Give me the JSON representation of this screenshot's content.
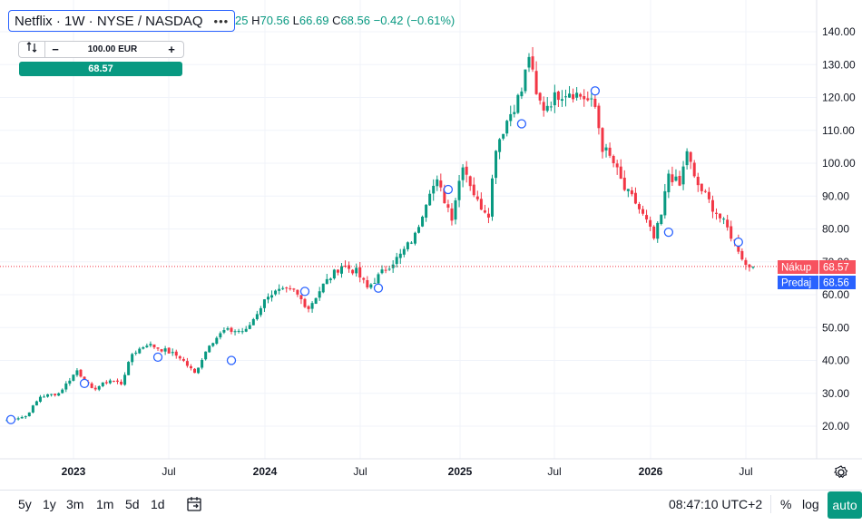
{
  "header": {
    "symbol": "Netflix · 1W · NYSE / NASDAQ",
    "menu_glyph": "•••",
    "ohlc_open_partial": "25",
    "high_label": "H",
    "high": "70.56",
    "low_label": "L",
    "low": "66.69",
    "close_label": "C",
    "close": "68.56",
    "change": "−0.42 (−0.61%)"
  },
  "trade": {
    "icon": "swap-icon",
    "amount": "100.00 EUR",
    "minus": "−",
    "plus": "+",
    "price": "68.57"
  },
  "bottom": {
    "ranges": [
      "5y",
      "1y",
      "3m",
      "1m",
      "5d",
      "1d"
    ],
    "time": "08:47:10 UTC+2",
    "percent": "%",
    "log": "log",
    "auto": "auto"
  },
  "colors": {
    "up": "#089981",
    "down": "#f23645",
    "buy_label": "#f7525f",
    "sell_label": "#2962ff",
    "grid": "#f0f3fa"
  },
  "chart_data": {
    "type": "candlestick",
    "interval": "1W",
    "y_axis": {
      "min": 10,
      "max": 145,
      "ticks": [
        20,
        30,
        40,
        50,
        60,
        70,
        80,
        90,
        100,
        110,
        120,
        130,
        140
      ],
      "tick_labels": [
        "20.00",
        "30.00",
        "40.00",
        "50.00",
        "60.00",
        "70.00",
        "80.00",
        "90.00",
        "100.00",
        "110.00",
        "120.00",
        "130.00",
        "140.00"
      ]
    },
    "x_axis": {
      "labels": [
        "2023",
        "Jul",
        "2024",
        "Jul",
        "2025",
        "Jul",
        "2026",
        "Jul"
      ],
      "bold": [
        true,
        false,
        true,
        false,
        true,
        false,
        true,
        false
      ]
    },
    "anchors": [
      [
        0,
        22
      ],
      [
        5,
        23
      ],
      [
        9,
        29
      ],
      [
        14,
        30
      ],
      [
        19,
        37
      ],
      [
        23,
        31
      ],
      [
        28,
        34
      ],
      [
        31,
        33
      ],
      [
        34,
        42
      ],
      [
        38,
        45
      ],
      [
        43,
        43
      ],
      [
        47,
        41
      ],
      [
        51,
        36
      ],
      [
        55,
        45
      ],
      [
        59,
        49
      ],
      [
        65,
        49
      ],
      [
        71,
        60
      ],
      [
        74,
        61
      ],
      [
        78,
        61
      ],
      [
        82,
        56
      ],
      [
        86,
        63
      ],
      [
        91,
        69
      ],
      [
        95,
        67
      ],
      [
        98,
        62
      ],
      [
        103,
        68
      ],
      [
        107,
        72
      ],
      [
        111,
        78
      ],
      [
        115,
        92
      ],
      [
        117,
        94
      ],
      [
        121,
        84
      ],
      [
        124,
        100
      ],
      [
        128,
        88
      ],
      [
        131,
        85
      ],
      [
        133,
        105
      ],
      [
        136,
        113
      ],
      [
        140,
        122
      ],
      [
        142,
        133
      ],
      [
        144,
        120
      ],
      [
        146,
        117
      ],
      [
        150,
        121
      ],
      [
        153,
        122
      ],
      [
        157,
        120
      ],
      [
        160,
        117
      ],
      [
        162,
        105
      ],
      [
        165,
        100
      ],
      [
        168,
        92
      ],
      [
        171,
        88
      ],
      [
        174,
        82
      ],
      [
        176,
        77
      ],
      [
        178,
        84
      ],
      [
        180,
        97
      ],
      [
        183,
        93
      ],
      [
        185,
        104
      ],
      [
        187,
        95
      ],
      [
        190,
        90
      ],
      [
        193,
        85
      ],
      [
        196,
        80
      ],
      [
        199,
        74
      ],
      [
        201,
        69
      ],
      [
        203,
        68.56
      ]
    ],
    "events": [
      {
        "x": 1,
        "y": 22
      },
      {
        "x": 21,
        "y": 33
      },
      {
        "x": 41,
        "y": 41
      },
      {
        "x": 61,
        "y": 40
      },
      {
        "x": 81,
        "y": 61
      },
      {
        "x": 101,
        "y": 62
      },
      {
        "x": 120,
        "y": 92
      },
      {
        "x": 140,
        "y": 112
      },
      {
        "x": 160,
        "y": 122
      },
      {
        "x": 180,
        "y": 79
      },
      {
        "x": 199,
        "y": 76
      }
    ],
    "last_price_line": 68.57,
    "price_labels": [
      {
        "label": "Nákup",
        "value": "68.57"
      },
      {
        "label": "Predaj",
        "value": "68.56"
      }
    ]
  }
}
